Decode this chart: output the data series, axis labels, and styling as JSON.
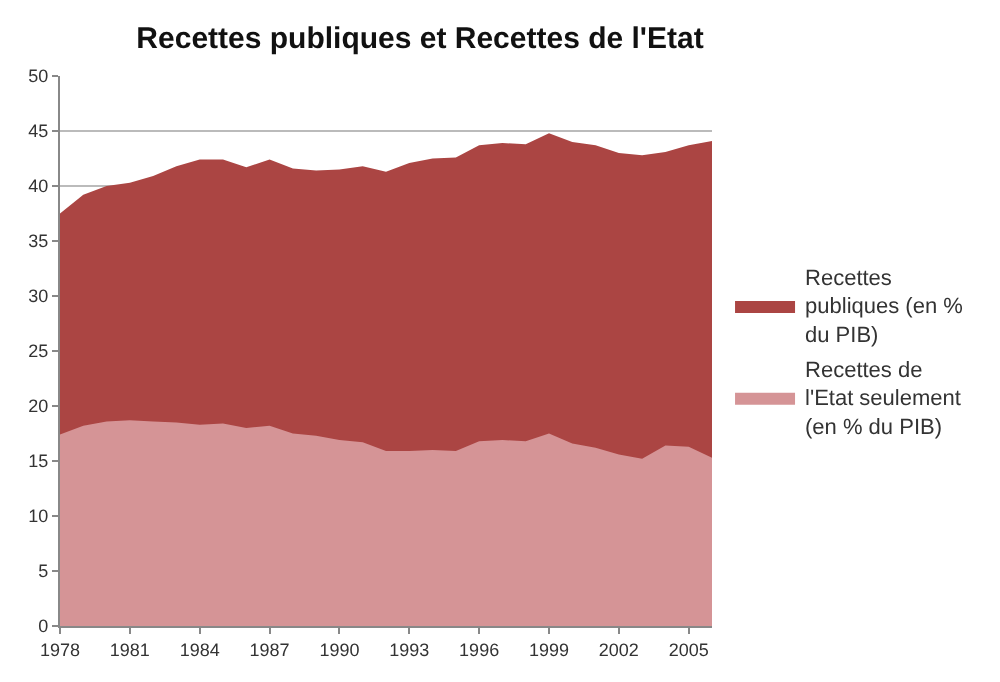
{
  "chart_data": {
    "type": "area",
    "title": "Recettes publiques et Recettes de l'Etat",
    "x": [
      1978,
      1979,
      1980,
      1981,
      1982,
      1983,
      1984,
      1985,
      1986,
      1987,
      1988,
      1989,
      1990,
      1991,
      1992,
      1993,
      1994,
      1995,
      1996,
      1997,
      1998,
      1999,
      2000,
      2001,
      2002,
      2003,
      2004,
      2005,
      2006
    ],
    "series": [
      {
        "name": "Recettes publiques (en % du PIB)",
        "color": "#ab4543",
        "values": [
          37.5,
          39.2,
          40.0,
          40.3,
          40.9,
          41.8,
          42.4,
          42.4,
          41.7,
          42.4,
          41.6,
          41.4,
          41.5,
          41.8,
          41.3,
          42.1,
          42.5,
          42.6,
          43.7,
          43.9,
          43.8,
          44.8,
          44.0,
          43.7,
          43.0,
          42.8,
          43.1,
          43.7,
          44.1
        ]
      },
      {
        "name": "Recettes de l'Etat seulement (en % du PIB)",
        "color": "#d59496",
        "values": [
          17.4,
          18.2,
          18.6,
          18.7,
          18.6,
          18.5,
          18.3,
          18.4,
          18.0,
          18.2,
          17.5,
          17.3,
          16.9,
          16.7,
          15.9,
          15.9,
          16.0,
          15.9,
          16.8,
          16.9,
          16.8,
          17.5,
          16.6,
          16.2,
          15.6,
          15.2,
          16.4,
          16.3,
          15.3
        ]
      }
    ],
    "xlim": [
      1978,
      2006
    ],
    "xticks": [
      1978,
      1981,
      1984,
      1987,
      1990,
      1993,
      1996,
      1999,
      2002,
      2005
    ],
    "ylim": [
      0,
      50
    ],
    "yticks": [
      0,
      5,
      10,
      15,
      20,
      25,
      30,
      35,
      40,
      45,
      50
    ],
    "grid": "y",
    "legend": "right"
  }
}
